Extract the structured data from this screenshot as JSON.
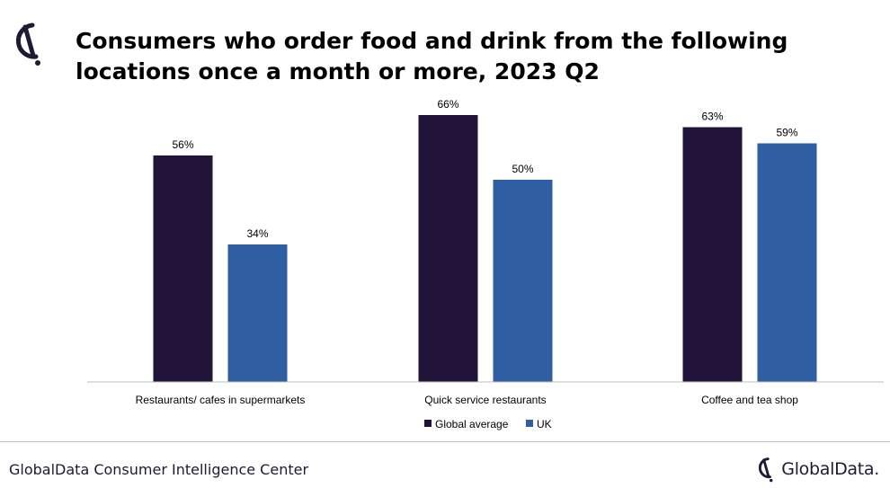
{
  "header": {
    "title": "Consumers who order food and drink from the following locations once a month or more, 2023 Q2"
  },
  "footer": {
    "source": "GlobalData Consumer Intelligence Center",
    "brand": "GlobalData."
  },
  "colors": {
    "global_average": "#211438",
    "uk": "#2f5ea2",
    "axis": "#bfbfbf"
  },
  "chart_data": {
    "type": "bar",
    "categories": [
      "Restaurants/ cafes in supermarkets",
      "Quick service restaurants",
      "Coffee and tea shop"
    ],
    "series": [
      {
        "name": "Global average",
        "values": [
          56,
          66,
          63
        ],
        "labels": [
          "56%",
          "66%",
          "63%"
        ],
        "color": "#211438"
      },
      {
        "name": "UK",
        "values": [
          34,
          50,
          59
        ],
        "labels": [
          "34%",
          "50%",
          "59%"
        ],
        "color": "#2f5ea2"
      }
    ],
    "ylim": [
      0,
      70
    ],
    "grid": false,
    "legend": "bottom-center",
    "xlabel": "",
    "ylabel": ""
  }
}
